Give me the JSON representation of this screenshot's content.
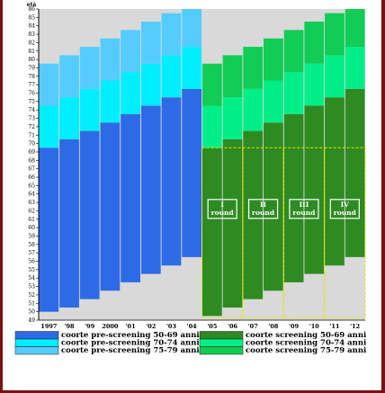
{
  "chart_data": {
    "type": "bar",
    "stacked": true,
    "ylabel": "età",
    "ylim": [
      49,
      86
    ],
    "yticks": [
      49,
      50,
      51,
      52,
      53,
      54,
      55,
      56,
      57,
      58,
      59,
      60,
      61,
      62,
      63,
      64,
      65,
      66,
      67,
      68,
      69,
      70,
      71,
      72,
      73,
      74,
      75,
      76,
      77,
      78,
      79,
      80,
      81,
      82,
      83,
      84,
      85,
      86
    ],
    "categories": [
      "1997",
      "'98",
      "'99",
      "2000",
      "'01",
      "'02",
      "'03",
      "'04",
      "'05",
      "'06",
      "'07",
      "'08",
      "'09",
      "'10",
      "'11",
      "'12"
    ],
    "bars": [
      {
        "start": 50,
        "bounds": [
          69.5,
          74.5,
          79.5
        ]
      },
      {
        "start": 50.5,
        "bounds": [
          70.5,
          75.5,
          80.5
        ]
      },
      {
        "start": 51.5,
        "bounds": [
          71.5,
          76.5,
          81.5
        ]
      },
      {
        "start": 52.5,
        "bounds": [
          72.5,
          77.5,
          82.5
        ]
      },
      {
        "start": 53.5,
        "bounds": [
          73.5,
          78.5,
          83.5
        ]
      },
      {
        "start": 54.5,
        "bounds": [
          74.5,
          79.5,
          84.5
        ]
      },
      {
        "start": 55.5,
        "bounds": [
          75.5,
          80.5,
          85.5
        ]
      },
      {
        "start": 56.5,
        "bounds": [
          76.5,
          81.5,
          86.5
        ]
      },
      {
        "start": 49.5,
        "bounds": [
          69.5,
          74.5,
          79.5
        ]
      },
      {
        "start": 50.5,
        "bounds": [
          70.5,
          75.5,
          80.5
        ]
      },
      {
        "start": 51.5,
        "bounds": [
          71.5,
          76.5,
          81.5
        ]
      },
      {
        "start": 52.5,
        "bounds": [
          72.5,
          77.5,
          82.5
        ]
      },
      {
        "start": 53.5,
        "bounds": [
          73.5,
          78.5,
          83.5
        ]
      },
      {
        "start": 54.5,
        "bounds": [
          74.5,
          79.5,
          84.5
        ]
      },
      {
        "start": 55.5,
        "bounds": [
          75.5,
          80.5,
          85.5
        ]
      },
      {
        "start": 56.5,
        "bounds": [
          76.5,
          81.5,
          86.5
        ]
      }
    ],
    "pre_colors": [
      "#2f6ae6",
      "#00eeff",
      "#55ccff"
    ],
    "scr_colors": [
      "#2e8b22",
      "#00ee88",
      "#11cc55"
    ],
    "pre_count": 8,
    "rounds": [
      {
        "numeral": "I",
        "word": "round"
      },
      {
        "numeral": "II",
        "word": "round"
      },
      {
        "numeral": "III",
        "word": "round"
      },
      {
        "numeral": "IV",
        "word": "round"
      }
    ],
    "round_ylim": [
      49.3,
      69.5
    ],
    "legend": {
      "pre": [
        "coorte pre-screening 50-69 anni",
        "coorte pre-screening 70-74 anni",
        "coorte pre-screening 75-79 anni"
      ],
      "scr": [
        "coorte screening 50-69 anni",
        "coorte screening 70-74 anni",
        "coorte screening 75-79 anni"
      ]
    },
    "grid": false,
    "background": "#d9d9d9"
  }
}
